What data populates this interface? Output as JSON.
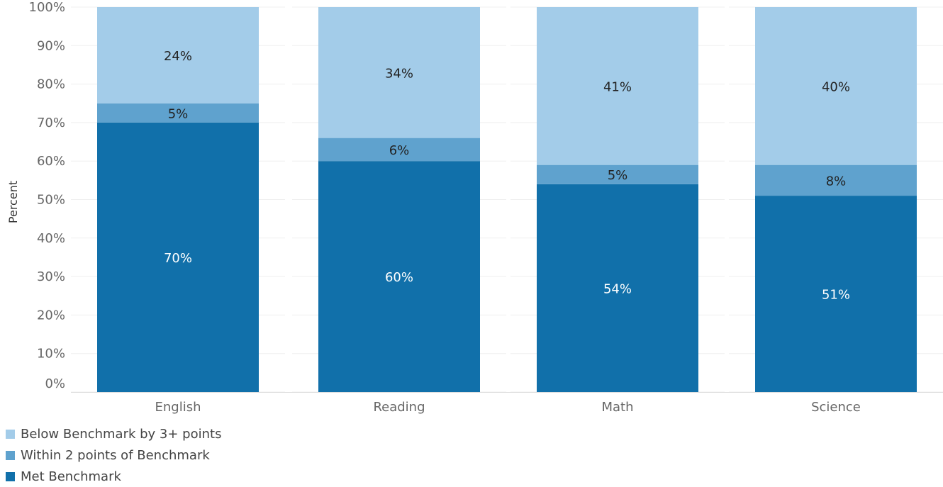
{
  "chart_data": {
    "type": "bar",
    "stacked": true,
    "categories": [
      "English",
      "Reading",
      "Math",
      "Science"
    ],
    "ylabel": "Percent",
    "xlabel": "",
    "ylim": [
      0,
      100
    ],
    "yticks": [
      "0%",
      "10%",
      "20%",
      "30%",
      "40%",
      "50%",
      "60%",
      "70%",
      "80%",
      "90%",
      "100%"
    ],
    "grid": true,
    "legend_position": "bottom-left",
    "series": [
      {
        "name": "Met Benchmark",
        "color": "#1170aa",
        "values": [
          70,
          60,
          54,
          51
        ],
        "labels": [
          "70%",
          "60%",
          "54%",
          "51%"
        ],
        "label_color": "#ffffff"
      },
      {
        "name": "Within 2 points of Benchmark",
        "color": "#5fa2ce",
        "values": [
          5,
          6,
          5,
          8
        ],
        "labels": [
          "5%",
          "6%",
          "5%",
          "8%"
        ],
        "label_color": "#222222"
      },
      {
        "name": "Below Benchmark by 3+ points",
        "color": "#a3cce9",
        "values": [
          24,
          34,
          41,
          40
        ],
        "labels": [
          "24%",
          "34%",
          "41%",
          "40%"
        ],
        "label_color": "#222222"
      }
    ]
  },
  "legend": {
    "items": [
      {
        "label": "Below Benchmark by 3+ points",
        "color": "#a3cce9"
      },
      {
        "label": "Within 2 points of Benchmark",
        "color": "#5fa2ce"
      },
      {
        "label": "Met Benchmark",
        "color": "#1170aa"
      }
    ]
  }
}
